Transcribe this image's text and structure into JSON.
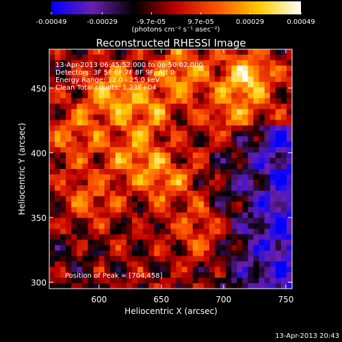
{
  "chart_data": {
    "type": "heatmap",
    "title": "Reconstructed RHESSI Image",
    "xlabel": "Heliocentric X (arcsec)",
    "ylabel": "Heliocentric Y (arcsec)",
    "xlim": [
      560,
      755
    ],
    "ylim": [
      295,
      480
    ],
    "x_ticks": [
      600,
      650,
      700,
      750
    ],
    "y_ticks": [
      300,
      350,
      400,
      450
    ],
    "colorbar": {
      "range": [
        -0.00049,
        0.00049
      ],
      "tick_values": [
        -0.00049,
        -0.00029,
        -9.7e-05,
        9.7e-05,
        0.00029,
        0.00049
      ],
      "tick_labels": [
        "-0.00049",
        "-0.00029",
        "-9.7e-05",
        "9.7e-05",
        "0.00029",
        "0.00049"
      ],
      "units_label": "(photons cm⁻² s⁻¹ asec⁻²)",
      "colors": [
        "#0000ff",
        "#6a1fb0",
        "#000000",
        "#c00000",
        "#ff5500",
        "#ffcc00",
        "#ffffff"
      ]
    },
    "annotations": {
      "time_range": "13-Apr-2013 06:45:52.000 to 06:50:02.000",
      "detectors": "Detectors: 3F 5F 6F 7F 8F 9F, Att 0",
      "energy_range": "Energy Range: 12.0 - 25.0 keV",
      "method": "Clean     Total counts: 1.23E+04",
      "peak": "Position of Peak = [704,458]"
    },
    "peak_position": [
      704,
      458
    ]
  },
  "footer": {
    "timestamp": "13-Apr-2013 20:43"
  }
}
